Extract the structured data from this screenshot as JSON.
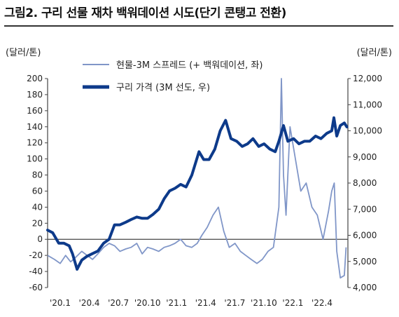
{
  "title": "그림2. 구리 선물 재차 백워데이션 시도(단기 콘탱고 전환)",
  "unit_left": "(달러/톤)",
  "unit_right": "(달러/톤)",
  "colors": {
    "spread": "#8096c8",
    "price": "#0d3a8a",
    "axis": "#444444"
  },
  "chart_data": {
    "type": "line",
    "x_labels": [
      "'20.1",
      "'20.4",
      "'20.7",
      "'20.10",
      "'21.1",
      "'21.4",
      "'21.7",
      "'21.10",
      "'22.1",
      "'22.4"
    ],
    "x_range": [
      "2020-01-01",
      "2022-04-15"
    ],
    "ylim_left": [
      -60,
      200
    ],
    "ylim_right": [
      4000,
      12000
    ],
    "left_ticks": [
      -60,
      -40,
      -20,
      0,
      20,
      40,
      60,
      80,
      100,
      120,
      140,
      160,
      180,
      200
    ],
    "right_ticks": [
      "4,000",
      "5,000",
      "6,000",
      "7,000",
      "8,000",
      "9,000",
      "10,000",
      "11,000",
      "12,000"
    ],
    "right_tick_values": [
      4000,
      5000,
      6000,
      7000,
      8000,
      9000,
      10000,
      11000,
      12000
    ],
    "series": [
      {
        "name": "현물-3M 스프레드 (+ 백워데이션, 좌)",
        "axis": "left",
        "x": [
          "2020-01-01",
          "2020-01-20",
          "2020-02-05",
          "2020-02-20",
          "2020-03-05",
          "2020-03-20",
          "2020-04-05",
          "2020-04-20",
          "2020-05-05",
          "2020-05-20",
          "2020-06-05",
          "2020-06-20",
          "2020-07-05",
          "2020-07-20",
          "2020-08-05",
          "2020-08-20",
          "2020-09-05",
          "2020-09-20",
          "2020-10-05",
          "2020-10-20",
          "2020-11-05",
          "2020-11-20",
          "2020-12-05",
          "2020-12-20",
          "2021-01-05",
          "2021-01-20",
          "2021-02-05",
          "2021-02-20",
          "2021-03-05",
          "2021-03-20",
          "2021-04-05",
          "2021-04-20",
          "2021-05-05",
          "2021-05-20",
          "2021-06-05",
          "2021-06-20",
          "2021-07-05",
          "2021-07-20",
          "2021-08-05",
          "2021-08-20",
          "2021-09-05",
          "2021-09-20",
          "2021-10-05",
          "2021-10-12",
          "2021-10-18",
          "2021-10-25",
          "2021-11-05",
          "2021-11-20",
          "2021-12-05",
          "2021-12-20",
          "2022-01-05",
          "2022-01-20",
          "2022-02-05",
          "2022-02-20",
          "2022-03-01",
          "2022-03-08",
          "2022-03-15",
          "2022-03-25",
          "2022-04-05",
          "2022-04-10"
        ],
        "y": [
          -20,
          -25,
          -30,
          -20,
          -28,
          -22,
          -15,
          -20,
          -25,
          -18,
          -10,
          -5,
          -8,
          -15,
          -12,
          -10,
          -5,
          -18,
          -10,
          -12,
          -15,
          -10,
          -8,
          -5,
          0,
          -8,
          -10,
          -5,
          5,
          15,
          30,
          40,
          10,
          -10,
          -5,
          -15,
          -20,
          -25,
          -30,
          -25,
          -15,
          -10,
          40,
          200,
          80,
          30,
          140,
          100,
          60,
          70,
          40,
          30,
          0,
          35,
          60,
          70,
          -15,
          -48,
          -45,
          -10
        ]
      },
      {
        "name": "구리 가격 (3M 선도, 우)",
        "axis": "right",
        "x": [
          "2020-01-01",
          "2020-01-15",
          "2020-02-01",
          "2020-02-15",
          "2020-03-01",
          "2020-03-10",
          "2020-03-23",
          "2020-04-05",
          "2020-04-20",
          "2020-05-05",
          "2020-05-20",
          "2020-06-05",
          "2020-06-20",
          "2020-07-05",
          "2020-07-20",
          "2020-08-05",
          "2020-08-20",
          "2020-09-05",
          "2020-09-20",
          "2020-10-05",
          "2020-10-20",
          "2020-11-05",
          "2020-11-20",
          "2020-12-05",
          "2020-12-20",
          "2021-01-05",
          "2021-01-20",
          "2021-02-05",
          "2021-02-25",
          "2021-03-10",
          "2021-03-25",
          "2021-04-10",
          "2021-04-25",
          "2021-05-10",
          "2021-05-25",
          "2021-06-10",
          "2021-06-25",
          "2021-07-10",
          "2021-07-25",
          "2021-08-10",
          "2021-08-25",
          "2021-09-10",
          "2021-09-25",
          "2021-10-05",
          "2021-10-18",
          "2021-10-30",
          "2021-11-15",
          "2021-11-30",
          "2021-12-15",
          "2021-12-30",
          "2022-01-15",
          "2022-01-30",
          "2022-02-15",
          "2022-03-01",
          "2022-03-07",
          "2022-03-15",
          "2022-03-25",
          "2022-04-05",
          "2022-04-12"
        ],
        "y": [
          6200,
          6100,
          5700,
          5700,
          5600,
          5300,
          4700,
          5050,
          5200,
          5300,
          5400,
          5700,
          5850,
          6400,
          6400,
          6500,
          6600,
          6700,
          6650,
          6650,
          6800,
          7000,
          7400,
          7700,
          7800,
          7950,
          7850,
          8300,
          9200,
          8900,
          8900,
          9300,
          10000,
          10400,
          9700,
          9600,
          9400,
          9500,
          9700,
          9400,
          9500,
          9300,
          9200,
          9600,
          10200,
          9600,
          9700,
          9500,
          9600,
          9600,
          9800,
          9700,
          9900,
          10000,
          10500,
          9800,
          10200,
          10300,
          10150
        ]
      }
    ]
  }
}
